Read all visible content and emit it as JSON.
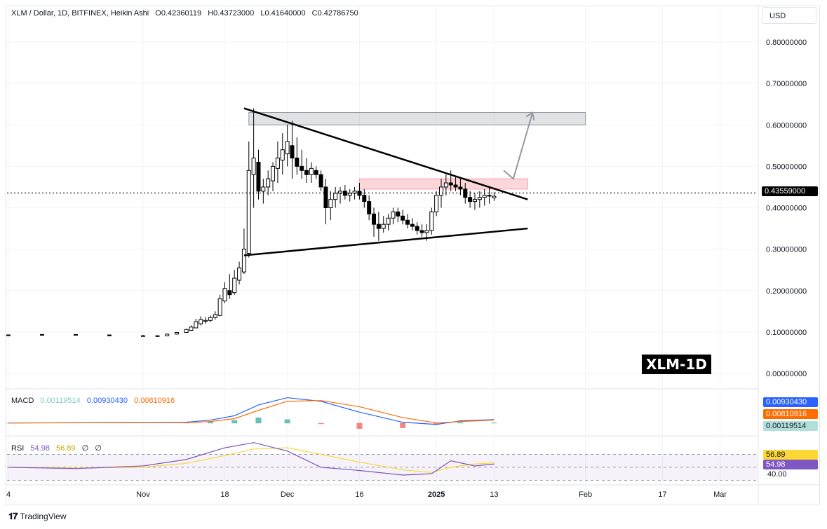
{
  "header": {
    "symbol_line": "XLM / Dollar, 1D, BITFINEX, Heikin Ashi",
    "open": "O0.42360119",
    "high": "H0.43723000",
    "low": "L0.41640000",
    "close": "C0.42786750"
  },
  "currency_button": "USD",
  "watermark": "XLM-1D",
  "footer": {
    "brand": "TradingView"
  },
  "current_price_label": "0.43559000",
  "macd_legend": {
    "name": "MACD",
    "hist": "0.00119514",
    "macd": "0.00930430",
    "signal": "0.00810916"
  },
  "macd_tags": {
    "macd": "0.00930430",
    "signal": "0.00810916",
    "hist": "0.00119514"
  },
  "rsi_legend": {
    "name": "RSI",
    "rsi": "54.98",
    "ma": "56.89",
    "x1": "∅",
    "x2": "∅"
  },
  "rsi_tags": {
    "ma": "56.89",
    "rsi": "54.98",
    "level": "40.00"
  },
  "colors": {
    "up": "#000000",
    "down": "#000000",
    "macd_line": "#2962ff",
    "signal_line": "#ff6d00",
    "hist_up": "#26a69a",
    "hist_down": "#ef5350",
    "rsi_line": "#7e57c2",
    "rsi_ma": "#fdd835"
  },
  "chart_data": {
    "type": "candlestick",
    "ylim": [
      0.0,
      0.85
    ],
    "y_ticks": [
      "0.80000000",
      "0.70000000",
      "0.60000000",
      "0.50000000",
      "0.40000000",
      "0.30000000",
      "0.20000000",
      "0.10000000",
      "0.00000000"
    ],
    "y_tick_values": [
      0.8,
      0.7,
      0.6,
      0.5,
      0.4,
      0.3,
      0.2,
      0.1,
      0.0
    ],
    "x_ticks": [
      "4",
      "Nov",
      "18",
      "Dec",
      "16",
      "2025",
      "13",
      "Feb",
      "17",
      "Mar"
    ],
    "x_tick_dates": [
      "2024-10-04",
      "2024-11-01",
      "2024-11-18",
      "2024-12-01",
      "2024-12-16",
      "2025-01-01",
      "2025-01-13",
      "2025-02-01",
      "2025-02-17",
      "2025-03-01"
    ],
    "candles": [
      {
        "date": "2024-10-04",
        "o": 0.092,
        "h": 0.094,
        "l": 0.091,
        "c": 0.093
      },
      {
        "date": "2024-10-11",
        "o": 0.093,
        "h": 0.095,
        "l": 0.092,
        "c": 0.094
      },
      {
        "date": "2024-10-18",
        "o": 0.094,
        "h": 0.095,
        "l": 0.092,
        "c": 0.093
      },
      {
        "date": "2024-10-25",
        "o": 0.093,
        "h": 0.094,
        "l": 0.09,
        "c": 0.091
      },
      {
        "date": "2024-11-01",
        "o": 0.091,
        "h": 0.093,
        "l": 0.089,
        "c": 0.09
      },
      {
        "date": "2024-11-04",
        "o": 0.09,
        "h": 0.092,
        "l": 0.088,
        "c": 0.091
      },
      {
        "date": "2024-11-06",
        "o": 0.091,
        "h": 0.096,
        "l": 0.09,
        "c": 0.095
      },
      {
        "date": "2024-11-08",
        "o": 0.095,
        "h": 0.1,
        "l": 0.094,
        "c": 0.099
      },
      {
        "date": "2024-11-10",
        "o": 0.099,
        "h": 0.108,
        "l": 0.098,
        "c": 0.106
      },
      {
        "date": "2024-11-11",
        "o": 0.104,
        "h": 0.116,
        "l": 0.103,
        "c": 0.112
      },
      {
        "date": "2024-11-12",
        "o": 0.11,
        "h": 0.132,
        "l": 0.109,
        "c": 0.125
      },
      {
        "date": "2024-11-13",
        "o": 0.12,
        "h": 0.138,
        "l": 0.116,
        "c": 0.13
      },
      {
        "date": "2024-11-14",
        "o": 0.126,
        "h": 0.136,
        "l": 0.12,
        "c": 0.128
      },
      {
        "date": "2024-11-15",
        "o": 0.128,
        "h": 0.14,
        "l": 0.124,
        "c": 0.135
      },
      {
        "date": "2024-11-16",
        "o": 0.135,
        "h": 0.15,
        "l": 0.13,
        "c": 0.142
      },
      {
        "date": "2024-11-17",
        "o": 0.14,
        "h": 0.19,
        "l": 0.138,
        "c": 0.18
      },
      {
        "date": "2024-11-18",
        "o": 0.175,
        "h": 0.22,
        "l": 0.17,
        "c": 0.205
      },
      {
        "date": "2024-11-19",
        "o": 0.2,
        "h": 0.24,
        "l": 0.18,
        "c": 0.19
      },
      {
        "date": "2024-11-20",
        "o": 0.195,
        "h": 0.25,
        "l": 0.19,
        "c": 0.23
      },
      {
        "date": "2024-11-21",
        "o": 0.225,
        "h": 0.27,
        "l": 0.215,
        "c": 0.255
      },
      {
        "date": "2024-11-22",
        "o": 0.245,
        "h": 0.35,
        "l": 0.24,
        "c": 0.3
      },
      {
        "date": "2024-11-23",
        "o": 0.29,
        "h": 0.56,
        "l": 0.28,
        "c": 0.49
      },
      {
        "date": "2024-11-24",
        "o": 0.48,
        "h": 0.64,
        "l": 0.4,
        "c": 0.52
      },
      {
        "date": "2024-11-25",
        "o": 0.51,
        "h": 0.54,
        "l": 0.42,
        "c": 0.44
      },
      {
        "date": "2024-11-26",
        "o": 0.44,
        "h": 0.47,
        "l": 0.41,
        "c": 0.45
      },
      {
        "date": "2024-11-27",
        "o": 0.45,
        "h": 0.49,
        "l": 0.43,
        "c": 0.47
      },
      {
        "date": "2024-11-28",
        "o": 0.465,
        "h": 0.51,
        "l": 0.44,
        "c": 0.5
      },
      {
        "date": "2024-11-29",
        "o": 0.495,
        "h": 0.56,
        "l": 0.46,
        "c": 0.52
      },
      {
        "date": "2024-11-30",
        "o": 0.515,
        "h": 0.58,
        "l": 0.48,
        "c": 0.54
      },
      {
        "date": "2024-12-01",
        "o": 0.53,
        "h": 0.6,
        "l": 0.5,
        "c": 0.56
      },
      {
        "date": "2024-12-02",
        "o": 0.55,
        "h": 0.61,
        "l": 0.47,
        "c": 0.52
      },
      {
        "date": "2024-12-03",
        "o": 0.52,
        "h": 0.57,
        "l": 0.48,
        "c": 0.5
      },
      {
        "date": "2024-12-04",
        "o": 0.5,
        "h": 0.54,
        "l": 0.47,
        "c": 0.49
      },
      {
        "date": "2024-12-05",
        "o": 0.49,
        "h": 0.52,
        "l": 0.46,
        "c": 0.48
      },
      {
        "date": "2024-12-06",
        "o": 0.48,
        "h": 0.51,
        "l": 0.46,
        "c": 0.495
      },
      {
        "date": "2024-12-07",
        "o": 0.49,
        "h": 0.5,
        "l": 0.47,
        "c": 0.48
      },
      {
        "date": "2024-12-08",
        "o": 0.48,
        "h": 0.49,
        "l": 0.44,
        "c": 0.45
      },
      {
        "date": "2024-12-09",
        "o": 0.45,
        "h": 0.47,
        "l": 0.36,
        "c": 0.4
      },
      {
        "date": "2024-12-10",
        "o": 0.4,
        "h": 0.44,
        "l": 0.37,
        "c": 0.42
      },
      {
        "date": "2024-12-11",
        "o": 0.42,
        "h": 0.45,
        "l": 0.4,
        "c": 0.435
      },
      {
        "date": "2024-12-12",
        "o": 0.435,
        "h": 0.45,
        "l": 0.41,
        "c": 0.44
      },
      {
        "date": "2024-12-13",
        "o": 0.44,
        "h": 0.455,
        "l": 0.42,
        "c": 0.43
      },
      {
        "date": "2024-12-14",
        "o": 0.43,
        "h": 0.445,
        "l": 0.415,
        "c": 0.435
      },
      {
        "date": "2024-12-15",
        "o": 0.435,
        "h": 0.45,
        "l": 0.42,
        "c": 0.44
      },
      {
        "date": "2024-12-16",
        "o": 0.44,
        "h": 0.46,
        "l": 0.42,
        "c": 0.43
      },
      {
        "date": "2024-12-17",
        "o": 0.43,
        "h": 0.445,
        "l": 0.4,
        "c": 0.415
      },
      {
        "date": "2024-12-18",
        "o": 0.415,
        "h": 0.43,
        "l": 0.37,
        "c": 0.385
      },
      {
        "date": "2024-12-19",
        "o": 0.385,
        "h": 0.4,
        "l": 0.33,
        "c": 0.36
      },
      {
        "date": "2024-12-20",
        "o": 0.36,
        "h": 0.39,
        "l": 0.32,
        "c": 0.35
      },
      {
        "date": "2024-12-21",
        "o": 0.35,
        "h": 0.38,
        "l": 0.34,
        "c": 0.36
      },
      {
        "date": "2024-12-22",
        "o": 0.36,
        "h": 0.385,
        "l": 0.345,
        "c": 0.375
      },
      {
        "date": "2024-12-23",
        "o": 0.375,
        "h": 0.4,
        "l": 0.36,
        "c": 0.39
      },
      {
        "date": "2024-12-24",
        "o": 0.39,
        "h": 0.4,
        "l": 0.365,
        "c": 0.38
      },
      {
        "date": "2024-12-25",
        "o": 0.38,
        "h": 0.395,
        "l": 0.36,
        "c": 0.37
      },
      {
        "date": "2024-12-26",
        "o": 0.37,
        "h": 0.385,
        "l": 0.35,
        "c": 0.36
      },
      {
        "date": "2024-12-27",
        "o": 0.36,
        "h": 0.375,
        "l": 0.345,
        "c": 0.355
      },
      {
        "date": "2024-12-28",
        "o": 0.355,
        "h": 0.365,
        "l": 0.335,
        "c": 0.345
      },
      {
        "date": "2024-12-29",
        "o": 0.345,
        "h": 0.36,
        "l": 0.33,
        "c": 0.34
      },
      {
        "date": "2024-12-30",
        "o": 0.34,
        "h": 0.36,
        "l": 0.32,
        "c": 0.345
      },
      {
        "date": "2024-12-31",
        "o": 0.345,
        "h": 0.4,
        "l": 0.335,
        "c": 0.39
      },
      {
        "date": "2025-01-01",
        "o": 0.39,
        "h": 0.44,
        "l": 0.38,
        "c": 0.43
      },
      {
        "date": "2025-01-02",
        "o": 0.43,
        "h": 0.47,
        "l": 0.4,
        "c": 0.45
      },
      {
        "date": "2025-01-03",
        "o": 0.45,
        "h": 0.48,
        "l": 0.43,
        "c": 0.46
      },
      {
        "date": "2025-01-04",
        "o": 0.46,
        "h": 0.49,
        "l": 0.44,
        "c": 0.455
      },
      {
        "date": "2025-01-05",
        "o": 0.455,
        "h": 0.475,
        "l": 0.44,
        "c": 0.45
      },
      {
        "date": "2025-01-06",
        "o": 0.45,
        "h": 0.47,
        "l": 0.43,
        "c": 0.445
      },
      {
        "date": "2025-01-07",
        "o": 0.445,
        "h": 0.46,
        "l": 0.41,
        "c": 0.425
      },
      {
        "date": "2025-01-08",
        "o": 0.425,
        "h": 0.44,
        "l": 0.4,
        "c": 0.415
      },
      {
        "date": "2025-01-09",
        "o": 0.415,
        "h": 0.435,
        "l": 0.395,
        "c": 0.42
      },
      {
        "date": "2025-01-10",
        "o": 0.42,
        "h": 0.44,
        "l": 0.4,
        "c": 0.425
      },
      {
        "date": "2025-01-11",
        "o": 0.425,
        "h": 0.445,
        "l": 0.405,
        "c": 0.43
      },
      {
        "date": "2025-01-12",
        "o": 0.43,
        "h": 0.45,
        "l": 0.41,
        "c": 0.428
      },
      {
        "date": "2025-01-13",
        "o": 0.4236,
        "h": 0.43723,
        "l": 0.4164,
        "c": 0.42787
      }
    ],
    "current_price": 0.43559,
    "resistance_zone": {
      "from_date": "2024-11-23",
      "to_date": "2025-02-01",
      "low": 0.6,
      "high": 0.63
    },
    "supply_zone": {
      "from_date": "2024-12-16",
      "to_date": "2025-01-20",
      "low": 0.445,
      "high": 0.47
    },
    "upper_trendline": [
      {
        "date": "2024-11-22",
        "v": 0.64
      },
      {
        "date": "2025-01-20",
        "v": 0.42
      }
    ],
    "lower_trendline": [
      {
        "date": "2024-11-22",
        "v": 0.285
      },
      {
        "date": "2025-01-20",
        "v": 0.35
      }
    ],
    "projection_arrow": [
      {
        "date": "2025-01-15",
        "v": 0.49
      },
      {
        "date": "2025-01-17",
        "v": 0.47
      },
      {
        "date": "2025-01-21",
        "v": 0.63
      }
    ],
    "macd": {
      "dates": [
        "2024-10-04",
        "2024-11-10",
        "2024-11-15",
        "2024-11-20",
        "2024-11-25",
        "2024-12-01",
        "2024-12-08",
        "2024-12-16",
        "2024-12-25",
        "2025-01-01",
        "2025-01-06",
        "2025-01-13"
      ],
      "macd": [
        0.0,
        0.002,
        0.008,
        0.02,
        0.05,
        0.07,
        0.06,
        0.03,
        0.002,
        -0.004,
        0.006,
        0.0093
      ],
      "signal": [
        0.0,
        0.001,
        0.004,
        0.012,
        0.035,
        0.06,
        0.062,
        0.045,
        0.015,
        0.0,
        0.004,
        0.0081
      ],
      "hist": [
        0.0,
        0.001,
        0.004,
        0.008,
        0.015,
        0.01,
        -0.002,
        -0.015,
        -0.013,
        -0.004,
        0.002,
        0.0012
      ]
    },
    "rsi": {
      "dates": [
        "2024-10-04",
        "2024-10-18",
        "2024-11-01",
        "2024-11-10",
        "2024-11-18",
        "2024-11-24",
        "2024-12-01",
        "2024-12-08",
        "2024-12-16",
        "2024-12-25",
        "2024-12-31",
        "2025-01-04",
        "2025-01-09",
        "2025-01-13"
      ],
      "rsi": [
        50,
        48,
        52,
        62,
        80,
        88,
        75,
        50,
        45,
        38,
        40,
        60,
        52,
        54.98
      ],
      "ma": [
        50,
        49,
        50,
        56,
        68,
        78,
        80,
        70,
        58,
        46,
        42,
        50,
        55,
        56.89
      ]
    }
  }
}
